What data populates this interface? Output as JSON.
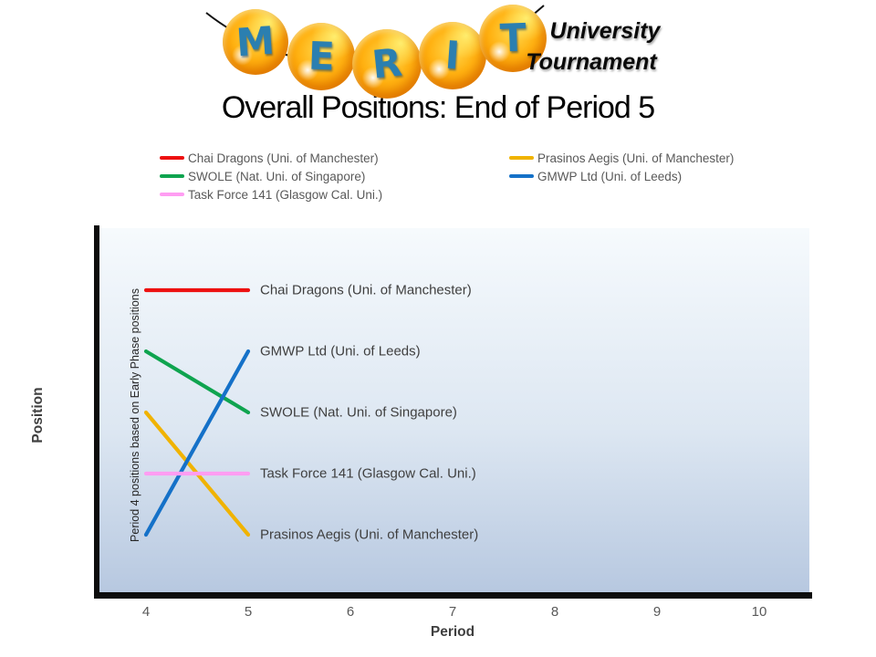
{
  "logo": {
    "letters": [
      "M",
      "E",
      "R",
      "I",
      "T"
    ],
    "subtitle_line1": "University",
    "subtitle_line2": "Tournament"
  },
  "title": "Overall Positions: End of Period 5",
  "legend": {
    "columns": [
      [
        {
          "label": "Chai Dragons (Uni. of Manchester)",
          "color": "#ED1111"
        },
        {
          "label": "SWOLE (Nat. Uni. of Singapore)",
          "color": "#0FA44F"
        },
        {
          "label": "Task Force 141 (Glasgow Cal. Uni.)",
          "color": "#FF9DF2"
        }
      ],
      [
        {
          "label": "Prasinos Aegis (Uni. of Manchester)",
          "color": "#F0B300"
        },
        {
          "label": "GMWP Ltd (Uni. of Leeds)",
          "color": "#1571C8"
        }
      ]
    ]
  },
  "chart_data": {
    "type": "line",
    "title": "Overall Positions: End of Period 5",
    "xlabel": "Period",
    "ylabel": "Position",
    "x_ticks": [
      4,
      5,
      6,
      7,
      8,
      9,
      10
    ],
    "xlim": [
      3.5,
      10.5
    ],
    "y_inverted": true,
    "y_meaning": "rank position, 1 = top",
    "grid": false,
    "legend_position": "top",
    "annotation": "Period 4 positions based on Early Phase positions",
    "series": [
      {
        "name": "Chai Dragons (Uni. of Manchester)",
        "color": "#ED1111",
        "x": [
          4,
          5
        ],
        "positions": [
          1,
          1
        ]
      },
      {
        "name": "SWOLE (Nat. Uni. of Singapore)",
        "color": "#0FA44F",
        "x": [
          4,
          5
        ],
        "positions": [
          2,
          3
        ]
      },
      {
        "name": "Prasinos Aegis (Uni. of Manchester)",
        "color": "#F0B300",
        "x": [
          4,
          5
        ],
        "positions": [
          3,
          5
        ]
      },
      {
        "name": "GMWP Ltd (Uni. of Leeds)",
        "color": "#1571C8",
        "x": [
          4,
          5
        ],
        "positions": [
          5,
          2
        ]
      },
      {
        "name": "Task Force 141 (Glasgow Cal. Uni.)",
        "color": "#FF9DF2",
        "x": [
          4,
          5
        ],
        "positions": [
          4,
          4
        ]
      }
    ]
  }
}
